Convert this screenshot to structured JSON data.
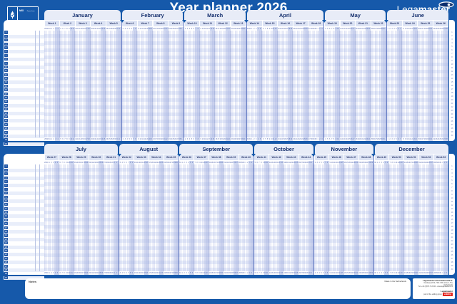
{
  "header": {
    "title": "Year planner 2026"
  },
  "brand": {
    "lega": "Lega",
    "master": "master",
    "eye_icon": "eye-icon"
  },
  "fsc": {
    "mix": "MIX",
    "line": "Paper from responsible sources"
  },
  "row_numbers": [
    1,
    2,
    3,
    4,
    5,
    6,
    7,
    8,
    9,
    10,
    11,
    12,
    13,
    14,
    15,
    16,
    17,
    18,
    19,
    20,
    21,
    22,
    23,
    24,
    25,
    26,
    27,
    28,
    29,
    30
  ],
  "halves": [
    {
      "months": [
        {
          "name": "January",
          "weeks": [
            {
              "label": "Week 1",
              "days": [
                29,
                30,
                31,
                1,
                2,
                3,
                4
              ]
            },
            {
              "label": "Week 2",
              "days": [
                5,
                6,
                7,
                8,
                9,
                10,
                11
              ]
            },
            {
              "label": "Week 3",
              "days": [
                12,
                13,
                14,
                15,
                16,
                17,
                18
              ]
            },
            {
              "label": "Week 4",
              "days": [
                19,
                20,
                21,
                22,
                23,
                24,
                25
              ]
            },
            {
              "label": "Week 5",
              "days": [
                26,
                27,
                28,
                29,
                30,
                31,
                1
              ]
            }
          ]
        },
        {
          "name": "February",
          "weeks": [
            {
              "label": "Week 6",
              "days": [
                2,
                3,
                4,
                5,
                6,
                7,
                8
              ]
            },
            {
              "label": "Week 7",
              "days": [
                9,
                10,
                11,
                12,
                13,
                14,
                15
              ]
            },
            {
              "label": "Week 8",
              "days": [
                16,
                17,
                18,
                19,
                20,
                21,
                22
              ]
            },
            {
              "label": "Week 9",
              "days": [
                23,
                24,
                25,
                26,
                27,
                28,
                1
              ]
            }
          ]
        },
        {
          "name": "March",
          "weeks": [
            {
              "label": "Week 10",
              "days": [
                2,
                3,
                4,
                5,
                6,
                7,
                8
              ]
            },
            {
              "label": "Week 11",
              "days": [
                9,
                10,
                11,
                12,
                13,
                14,
                15
              ]
            },
            {
              "label": "Week 12",
              "days": [
                16,
                17,
                18,
                19,
                20,
                21,
                22
              ]
            },
            {
              "label": "Week 13",
              "days": [
                23,
                24,
                25,
                26,
                27,
                28,
                29
              ]
            }
          ]
        },
        {
          "name": "April",
          "weeks": [
            {
              "label": "Week 14",
              "days": [
                30,
                31,
                1,
                2,
                3,
                4,
                5
              ]
            },
            {
              "label": "Week 15",
              "days": [
                6,
                7,
                8,
                9,
                10,
                11,
                12
              ]
            },
            {
              "label": "Week 16",
              "days": [
                13,
                14,
                15,
                16,
                17,
                18,
                19
              ]
            },
            {
              "label": "Week 17",
              "days": [
                20,
                21,
                22,
                23,
                24,
                25,
                26
              ]
            },
            {
              "label": "Week 18",
              "days": [
                27,
                28,
                29,
                30,
                1,
                2,
                3
              ]
            }
          ]
        },
        {
          "name": "May",
          "weeks": [
            {
              "label": "Week 19",
              "days": [
                4,
                5,
                6,
                7,
                8,
                9,
                10
              ]
            },
            {
              "label": "Week 20",
              "days": [
                11,
                12,
                13,
                14,
                15,
                16,
                17
              ]
            },
            {
              "label": "Week 21",
              "days": [
                18,
                19,
                20,
                21,
                22,
                23,
                24
              ]
            },
            {
              "label": "Week 22",
              "days": [
                25,
                26,
                27,
                28,
                29,
                30,
                31
              ]
            }
          ]
        },
        {
          "name": "June",
          "weeks": [
            {
              "label": "Week 23",
              "days": [
                1,
                2,
                3,
                4,
                5,
                6,
                7
              ]
            },
            {
              "label": "Week 24",
              "days": [
                8,
                9,
                10,
                11,
                12,
                13,
                14
              ]
            },
            {
              "label": "Week 25",
              "days": [
                15,
                16,
                17,
                18,
                19,
                20,
                21
              ]
            },
            {
              "label": "Week 26",
              "days": [
                22,
                23,
                24,
                25,
                26,
                27,
                28
              ]
            }
          ]
        }
      ]
    },
    {
      "months": [
        {
          "name": "July",
          "weeks": [
            {
              "label": "Week 27",
              "days": [
                29,
                30,
                1,
                2,
                3,
                4,
                5
              ]
            },
            {
              "label": "Week 28",
              "days": [
                6,
                7,
                8,
                9,
                10,
                11,
                12
              ]
            },
            {
              "label": "Week 29",
              "days": [
                13,
                14,
                15,
                16,
                17,
                18,
                19
              ]
            },
            {
              "label": "Week 30",
              "days": [
                20,
                21,
                22,
                23,
                24,
                25,
                26
              ]
            },
            {
              "label": "Week 31",
              "days": [
                27,
                28,
                29,
                30,
                31,
                1,
                2
              ]
            }
          ]
        },
        {
          "name": "August",
          "weeks": [
            {
              "label": "Week 32",
              "days": [
                3,
                4,
                5,
                6,
                7,
                8,
                9
              ]
            },
            {
              "label": "Week 33",
              "days": [
                10,
                11,
                12,
                13,
                14,
                15,
                16
              ]
            },
            {
              "label": "Week 34",
              "days": [
                17,
                18,
                19,
                20,
                21,
                22,
                23
              ]
            },
            {
              "label": "Week 35",
              "days": [
                24,
                25,
                26,
                27,
                28,
                29,
                30
              ]
            }
          ]
        },
        {
          "name": "September",
          "weeks": [
            {
              "label": "Week 36",
              "days": [
                31,
                1,
                2,
                3,
                4,
                5,
                6
              ]
            },
            {
              "label": "Week 37",
              "days": [
                7,
                8,
                9,
                10,
                11,
                12,
                13
              ]
            },
            {
              "label": "Week 38",
              "days": [
                14,
                15,
                16,
                17,
                18,
                19,
                20
              ]
            },
            {
              "label": "Week 39",
              "days": [
                21,
                22,
                23,
                24,
                25,
                26,
                27
              ]
            },
            {
              "label": "Week 40",
              "days": [
                28,
                29,
                30,
                1,
                2,
                3,
                4
              ]
            }
          ]
        },
        {
          "name": "October",
          "weeks": [
            {
              "label": "Week 41",
              "days": [
                5,
                6,
                7,
                8,
                9,
                10,
                11
              ]
            },
            {
              "label": "Week 42",
              "days": [
                12,
                13,
                14,
                15,
                16,
                17,
                18
              ]
            },
            {
              "label": "Week 43",
              "days": [
                19,
                20,
                21,
                22,
                23,
                24,
                25
              ]
            },
            {
              "label": "Week 44",
              "days": [
                26,
                27,
                28,
                29,
                30,
                31,
                1
              ]
            }
          ]
        },
        {
          "name": "November",
          "weeks": [
            {
              "label": "Week 45",
              "days": [
                2,
                3,
                4,
                5,
                6,
                7,
                8
              ]
            },
            {
              "label": "Week 46",
              "days": [
                9,
                10,
                11,
                12,
                13,
                14,
                15
              ]
            },
            {
              "label": "Week 47",
              "days": [
                16,
                17,
                18,
                19,
                20,
                21,
                22
              ]
            },
            {
              "label": "Week 48",
              "days": [
                23,
                24,
                25,
                26,
                27,
                28,
                29
              ]
            }
          ]
        },
        {
          "name": "December",
          "weeks": [
            {
              "label": "Week 49",
              "days": [
                30,
                1,
                2,
                3,
                4,
                5,
                6
              ]
            },
            {
              "label": "Week 50",
              "days": [
                7,
                8,
                9,
                10,
                11,
                12,
                13
              ]
            },
            {
              "label": "Week 51",
              "days": [
                14,
                15,
                16,
                17,
                18,
                19,
                20
              ]
            },
            {
              "label": "Week 52",
              "days": [
                21,
                22,
                23,
                24,
                25,
                26,
                27
              ]
            },
            {
              "label": "Week 53",
              "days": [
                28,
                29,
                30,
                31,
                1,
                2,
                3
              ]
            }
          ]
        }
      ]
    }
  ],
  "notes": {
    "label": "Notes"
  },
  "footer": {
    "made_in": "Made in the Netherlands",
    "company": "Legamaster International B.V.",
    "address": "Kwinkweerd 62, 7241 CW Lochem, The Netherlands",
    "contact": "Tel: +31 (0)573 713 000 - www.legamaster.com",
    "brand": "Legamaster",
    "edding_line": "part of the edding group",
    "edding_label": "edding"
  },
  "colors": {
    "background_blue": "#1659aa",
    "tab_light": "#e8ecf7",
    "navy_text": "#16306e",
    "weekend_shade": "#cfd8f1",
    "edding_red": "#e2241c"
  }
}
